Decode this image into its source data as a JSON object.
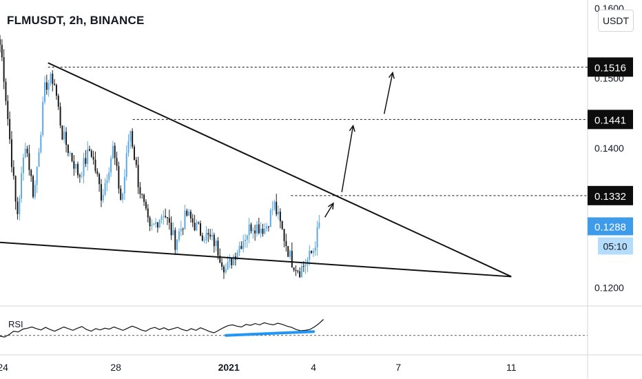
{
  "header": {
    "title": "FLMUSDT, 2h, BINANCE",
    "currency_button": "USDT",
    "rsi_label": "RSI"
  },
  "colors": {
    "up": "#5aa9e6",
    "down": "#1a1a1a",
    "trendline": "#111111",
    "level_tag_bg": "#0d0d0d",
    "price_tag_bg": "#3d9be9",
    "timer_bg": "#b6dcfb",
    "rsi_divergence": "#2196f3",
    "grid_separator": "#d1d4dc"
  },
  "chart_data": [
    {
      "type": "candlestick",
      "symbol": "FLMUSDT",
      "interval": "2h",
      "exchange": "BINANCE",
      "ylim": [
        0.1175,
        0.1612
      ],
      "y_ticks": [
        {
          "value": 0.12,
          "label": "0.1200"
        },
        {
          "value": 0.14,
          "label": "0.1400"
        },
        {
          "value": 0.15,
          "label": "0.1500"
        },
        {
          "value": 0.16,
          "label": "0.1600"
        }
      ],
      "x_ticks": [
        {
          "day": 24,
          "label": "24",
          "bold": false
        },
        {
          "day": 28,
          "label": "28",
          "bold": false
        },
        {
          "day": 32,
          "label": "2021",
          "bold": true
        },
        {
          "day": 35,
          "label": "4",
          "bold": false
        },
        {
          "day": 38,
          "label": "7",
          "bold": false
        },
        {
          "day": 42,
          "label": "11",
          "bold": false
        }
      ],
      "x_day_range": [
        23.9,
        44.7
      ],
      "current_price": {
        "value": 0.1288,
        "label": "0.1288",
        "countdown": "05:10"
      },
      "levels": [
        {
          "value": 0.1516,
          "label": "0.1516"
        },
        {
          "value": 0.1441,
          "label": "0.1441"
        },
        {
          "value": 0.1332,
          "label": "0.1332"
        }
      ],
      "trendlines": [
        {
          "from": [
            25.6,
            0.1522
          ],
          "to": [
            42.0,
            0.1216
          ]
        },
        {
          "from": [
            23.9,
            0.1265
          ],
          "to": [
            42.0,
            0.1216
          ]
        }
      ],
      "arrows": [
        {
          "from": [
            35.4,
            0.1301
          ],
          "to": [
            35.7,
            0.1321
          ]
        },
        {
          "from": [
            36.0,
            0.1337
          ],
          "to": [
            36.4,
            0.1432
          ]
        },
        {
          "from": [
            37.5,
            0.1449
          ],
          "to": [
            37.8,
            0.1508
          ]
        }
      ],
      "key_pivots": [
        {
          "day": 23.9,
          "price": 0.1548
        },
        {
          "day": 24.0,
          "price": 0.152
        },
        {
          "day": 24.5,
          "price": 0.13
        },
        {
          "day": 24.8,
          "price": 0.141
        },
        {
          "day": 25.1,
          "price": 0.133
        },
        {
          "day": 25.5,
          "price": 0.149
        },
        {
          "day": 25.8,
          "price": 0.15
        },
        {
          "day": 26.1,
          "price": 0.142
        },
        {
          "day": 26.7,
          "price": 0.136
        },
        {
          "day": 27.1,
          "price": 0.14
        },
        {
          "day": 27.5,
          "price": 0.133
        },
        {
          "day": 27.9,
          "price": 0.14
        },
        {
          "day": 28.2,
          "price": 0.132
        },
        {
          "day": 28.5,
          "price": 0.143
        },
        {
          "day": 28.8,
          "price": 0.135
        },
        {
          "day": 29.2,
          "price": 0.128
        },
        {
          "day": 29.7,
          "price": 0.131
        },
        {
          "day": 30.1,
          "price": 0.1265
        },
        {
          "day": 30.5,
          "price": 0.1305
        },
        {
          "day": 31.0,
          "price": 0.128
        },
        {
          "day": 31.5,
          "price": 0.1265
        },
        {
          "day": 31.9,
          "price": 0.1225
        },
        {
          "day": 32.3,
          "price": 0.1255
        },
        {
          "day": 32.8,
          "price": 0.129
        },
        {
          "day": 33.3,
          "price": 0.1285
        },
        {
          "day": 33.6,
          "price": 0.132
        },
        {
          "day": 33.9,
          "price": 0.128
        },
        {
          "day": 34.2,
          "price": 0.124
        },
        {
          "day": 34.5,
          "price": 0.1225
        },
        {
          "day": 34.8,
          "price": 0.124
        },
        {
          "day": 35.0,
          "price": 0.1255
        },
        {
          "day": 35.2,
          "price": 0.129
        }
      ]
    },
    {
      "type": "line",
      "name": "RSI",
      "ylim": [
        0,
        100
      ],
      "reference_level": 30,
      "x_day_range": [
        23.9,
        35.35
      ],
      "values": [
        28,
        26,
        32,
        40,
        38,
        45,
        47,
        50,
        46,
        43,
        49,
        44,
        40,
        45,
        50,
        46,
        42,
        47,
        51,
        44,
        40,
        46,
        43,
        47,
        45,
        50,
        46,
        42,
        47,
        52,
        48,
        43,
        40,
        46,
        49,
        44,
        48,
        43,
        46,
        49,
        44,
        41,
        46,
        42,
        48,
        44,
        39,
        36,
        42,
        48,
        53,
        55,
        52,
        50,
        56,
        54,
        58,
        55,
        60,
        57,
        55,
        59,
        56,
        52,
        49,
        44,
        41,
        42,
        44,
        50,
        58,
        68
      ],
      "divergence_line": {
        "from": [
          31.9,
          30
        ],
        "to": [
          35.0,
          39
        ]
      }
    }
  ]
}
